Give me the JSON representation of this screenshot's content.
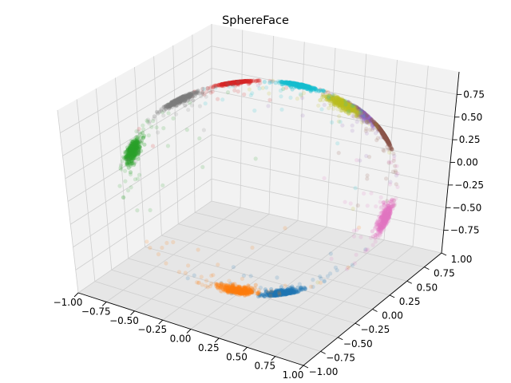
{
  "chart_data": {
    "type": "scatter",
    "title": "SphereFace",
    "projection": "3d",
    "grid": true,
    "legend": "none",
    "xlim": [
      -1.0,
      1.0
    ],
    "ylim": [
      -1.0,
      1.0
    ],
    "zlim": [
      -1.0,
      1.0
    ],
    "x_ticks": [
      "−1.00",
      "−0.75",
      "−0.50",
      "−0.25",
      "0.00",
      "0.25",
      "0.50",
      "0.75",
      "1.00"
    ],
    "y_ticks": [
      "−1.00",
      "−0.75",
      "−0.50",
      "−0.25",
      "0.00",
      "0.25",
      "0.50",
      "0.75",
      "1.00"
    ],
    "z_ticks": [
      "−0.75",
      "−0.50",
      "−0.25",
      "0.00",
      "0.25",
      "0.50",
      "0.75"
    ],
    "z_tick_values": [
      -0.75,
      -0.5,
      -0.25,
      0.0,
      0.25,
      0.5,
      0.75
    ],
    "series": [
      {
        "color": "#1f77b4",
        "center": [
          0.5,
          -0.5,
          -0.7
        ],
        "points": 420
      },
      {
        "color": "#ff7f0e",
        "center": [
          0.25,
          -0.7,
          -0.62
        ],
        "points": 420
      },
      {
        "color": "#2ca02c",
        "center": [
          -0.7,
          -0.55,
          0.45
        ],
        "points": 380
      },
      {
        "color": "#d62728",
        "center": [
          -0.45,
          0.4,
          0.85
        ],
        "points": 380
      },
      {
        "color": "#9467bd",
        "center": [
          0.45,
          0.5,
          0.6
        ],
        "points": 420
      },
      {
        "color": "#8c564b",
        "center": [
          0.6,
          0.65,
          0.38
        ],
        "points": 380
      },
      {
        "color": "#e377c2",
        "center": [
          0.85,
          0.55,
          -0.42
        ],
        "points": 380
      },
      {
        "color": "#7f7f7f",
        "center": [
          -0.8,
          0.2,
          0.65
        ],
        "points": 380
      },
      {
        "color": "#bcbd22",
        "center": [
          0.2,
          0.9,
          0.55
        ],
        "points": 380
      },
      {
        "color": "#17becf",
        "center": [
          -0.1,
          0.85,
          0.95
        ],
        "points": 380
      }
    ]
  }
}
